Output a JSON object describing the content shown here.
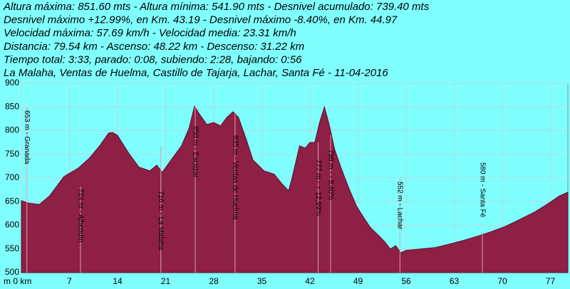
{
  "chart_data": {
    "type": "area",
    "header": [
      "Altura máxima: 851.60 mts - Altura mínima: 541.90 mts - Desnivel acumulado: 739.40 mts",
      "Desnivel máximo +12.99%, en Km. 43.19 - Desnivel máximo -8.40%, en Km. 44.97",
      "Velocidad máxima: 57.69 km/h - Velocidad media: 23.31 km/h",
      "Distancia: 79.54 km - Ascenso: 48.22 km - Descenso: 31.22 km",
      "Tiempo total: 3:33, parado: 0:08, subiendo: 2:28, bajando: 0:56",
      "La Malaha, Ventas de Huelma, Castillo de Tajarja, Lachar, Santa Fé - 11-04-2016"
    ],
    "x": [
      0,
      1,
      2.6,
      4.1,
      6.2,
      8.3,
      9.9,
      11.4,
      12.7,
      13.3,
      14,
      15.6,
      17.1,
      18.7,
      19.7,
      20.5,
      21.8,
      23.3,
      24.4,
      25.2,
      25.9,
      27,
      28,
      29,
      29.9,
      30.8,
      31.6,
      32.7,
      33.7,
      35.3,
      36.8,
      37.9,
      38.9,
      39.4,
      40.5,
      41.3,
      42,
      42.7,
      43.4,
      44.1,
      44.8,
      45.6,
      46.7,
      47.7,
      48.8,
      49.8,
      50.8,
      51.9,
      52.9,
      53.7,
      54.5,
      55.2,
      56,
      58.1,
      60.2,
      62.2,
      64.3,
      66.4,
      68.5,
      70.5,
      72.6,
      74.7,
      76.8,
      78.3,
      79.54
    ],
    "series": [
      {
        "color": "#8e1f45",
        "values": [
          652,
          647,
          644,
          662,
          703,
          721,
          742,
          768,
          795,
          796,
          790,
          753,
          723,
          715,
          727,
          712,
          738,
          768,
          805,
          851.6,
          835,
          813,
          817,
          810,
          828,
          840,
          828,
          783,
          738,
          715,
          708,
          688,
          673,
          700,
          768,
          763,
          775,
          775,
          817,
          850,
          813,
          760,
          715,
          677,
          640,
          617,
          595,
          580,
          565,
          550,
          557,
          542,
          547,
          550,
          553,
          560,
          568,
          577,
          587,
          598,
          613,
          628,
          647,
          662,
          670
        ]
      }
    ],
    "xlim": [
      0,
      79.54
    ],
    "ylim": [
      500,
      900
    ],
    "xticks": [
      {
        "value": 0,
        "label": "m 0 km"
      },
      7,
      14,
      21,
      28,
      35,
      42,
      49,
      56,
      63,
      70,
      77
    ],
    "yticks": [
      500,
      550,
      600,
      650,
      700,
      750,
      800,
      850,
      900
    ],
    "grid": true,
    "annotations": [
      {
        "text": "653 m - Granada",
        "x": 0.8
      },
      {
        "text": "724 m - Alhendín",
        "x": 8.6
      },
      {
        "text": "716 m - La Malaha",
        "x": 20.3
      },
      {
        "text": "850 m - Escúzar",
        "x": 25.3
      },
      {
        "text": "835 m - Ventas de Huelma",
        "x": 31.1
      },
      {
        "text": "777 m - + 12.99%",
        "x": 43.2
      },
      {
        "text": "798 m - - 8.40%",
        "x": 45.0
      },
      {
        "text": "552 m - Lachar",
        "x": 55.1
      },
      {
        "text": "580 m - Santa Fé",
        "x": 67.1
      }
    ]
  }
}
